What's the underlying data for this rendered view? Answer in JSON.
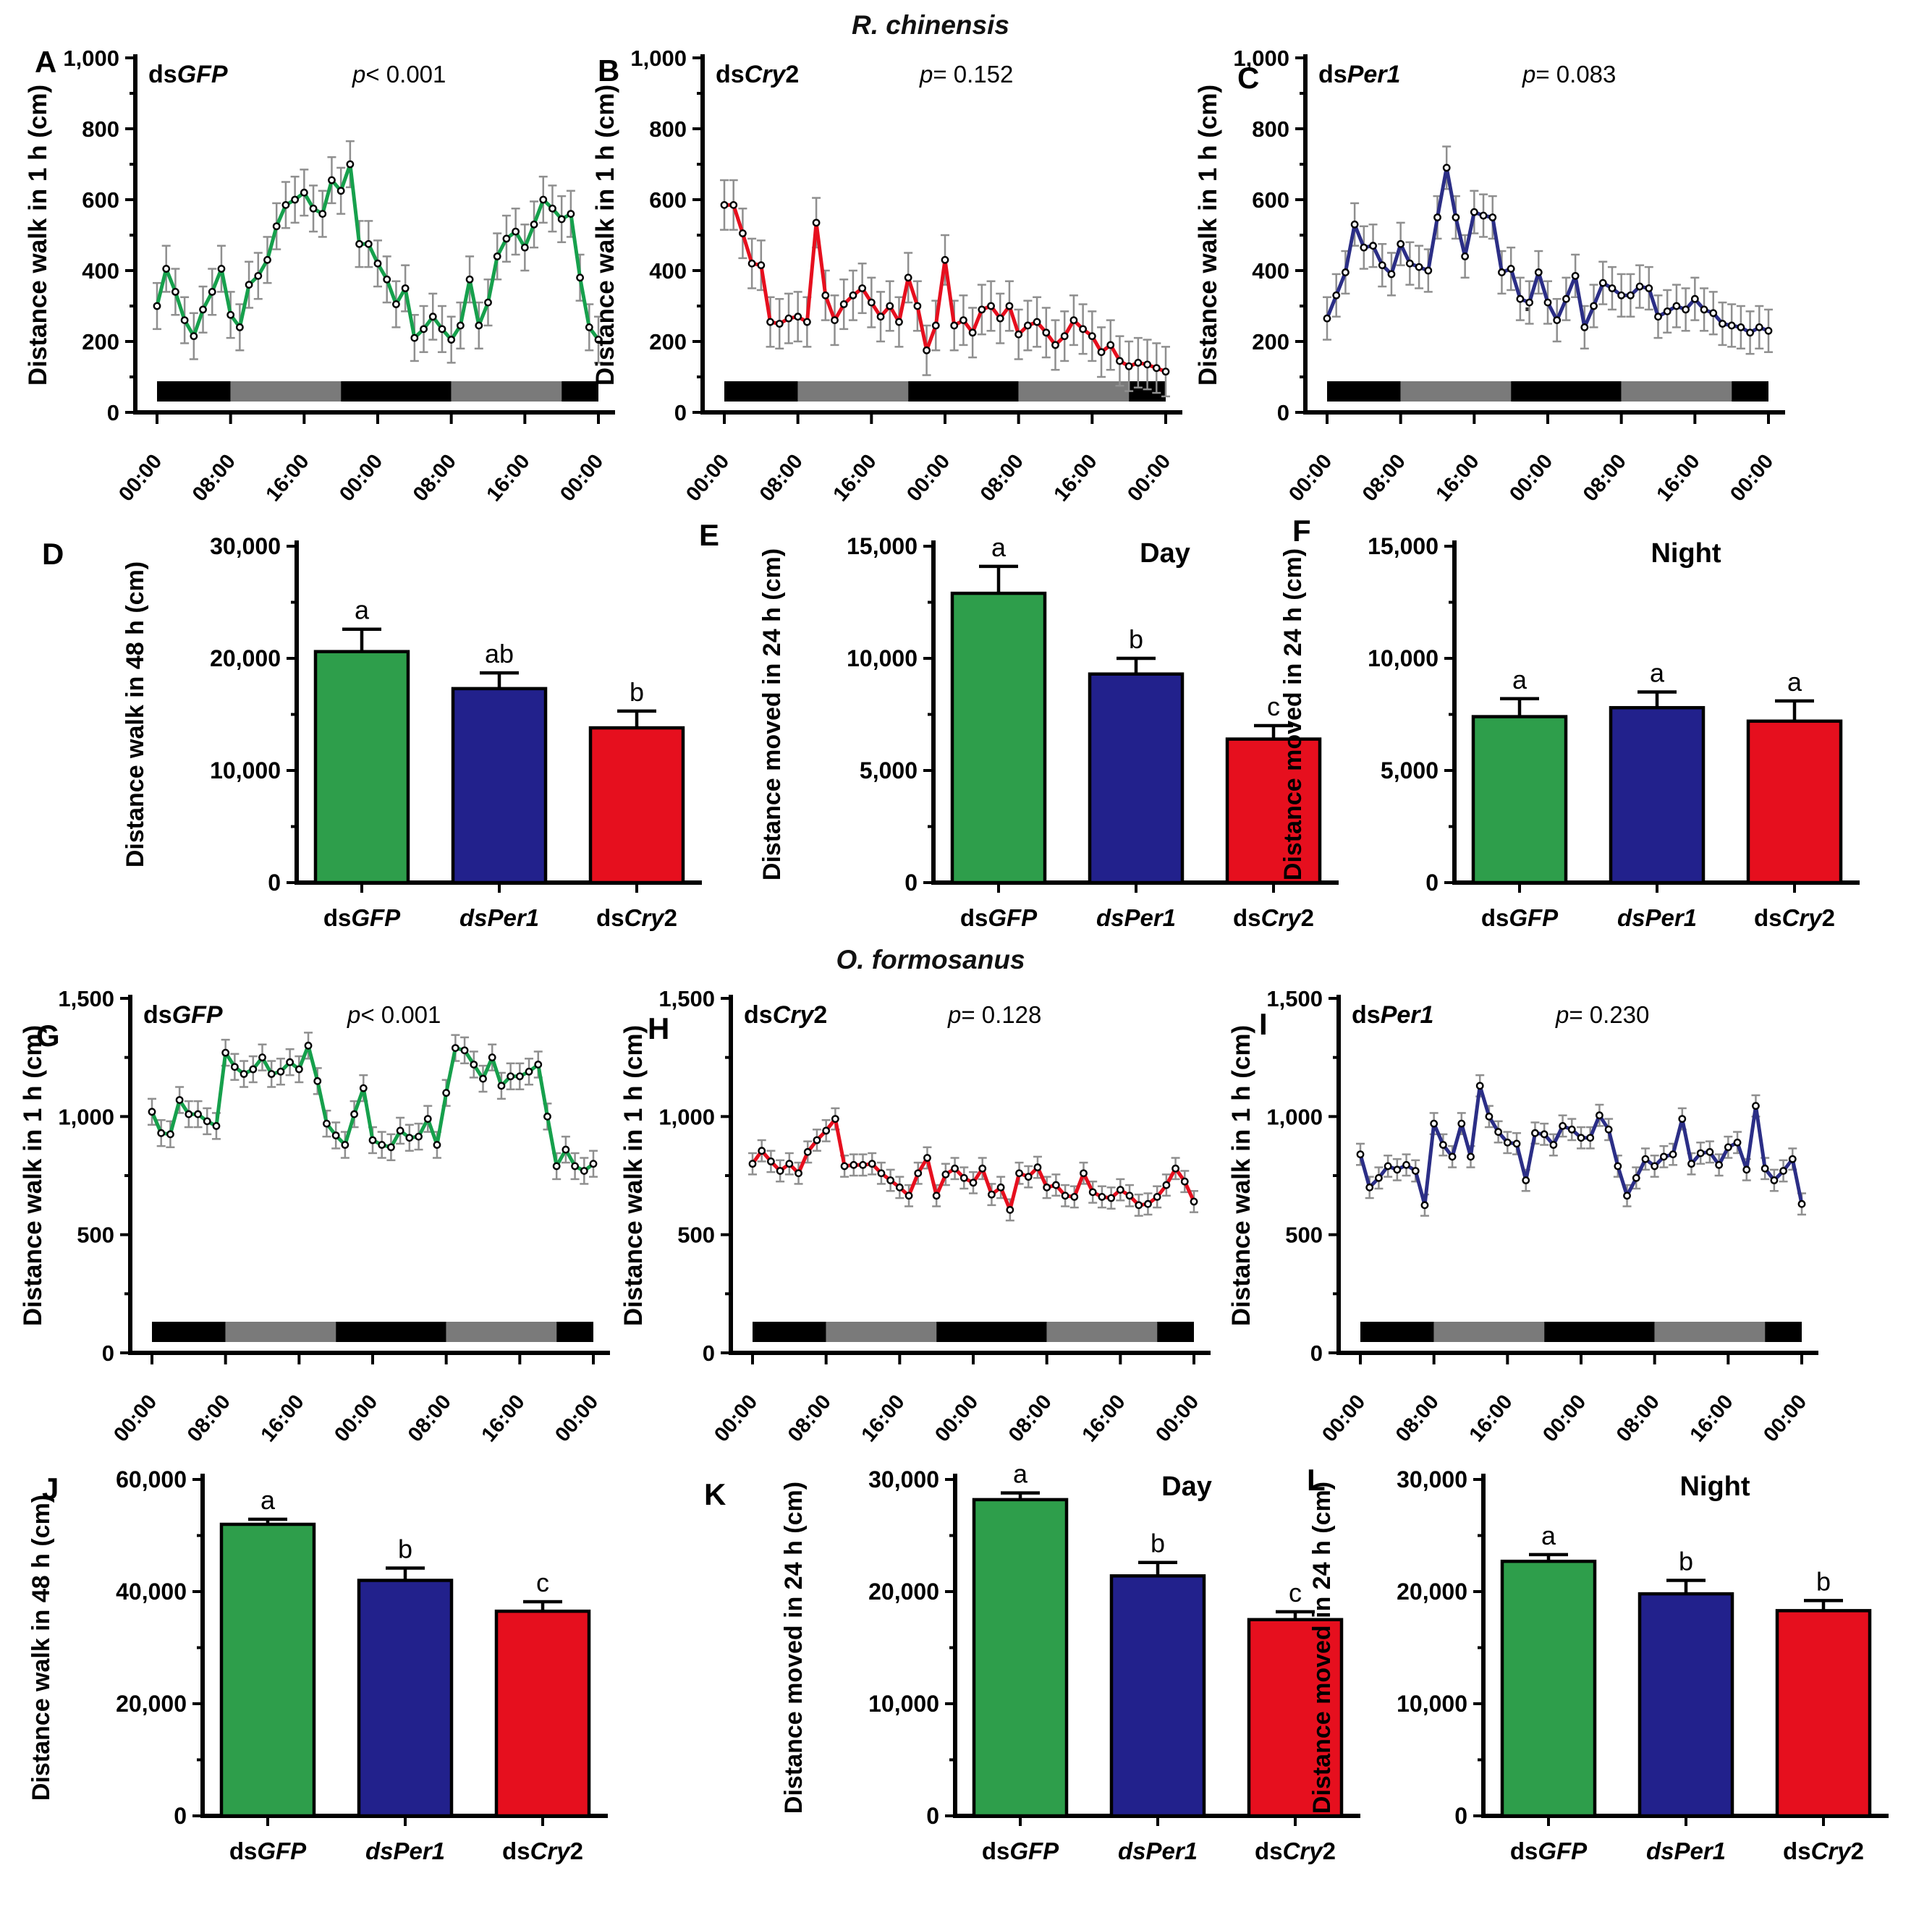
{
  "figure": {
    "species_titles": [
      "R. chinensis",
      "O. formosanus"
    ],
    "stray_dot": ".",
    "colors": {
      "green": "#2E9E4B",
      "blue": "#22218C",
      "red": "#E60F1E",
      "error_bar_gray": "#8f8f8f",
      "photoperiod_gray": "#7a7a7a",
      "photoperiod_black": "#000000"
    }
  },
  "chart_data": [
    {
      "id": "A",
      "type": "line",
      "species": "R. chinensis",
      "label": [
        {
          "t": "ds",
          "i": false
        },
        {
          "t": "GFP",
          "i": true
        }
      ],
      "p_label": [
        {
          "t": "p",
          "i": true
        },
        {
          "t": "< 0.001",
          "i": false
        }
      ],
      "color": "#16A04C",
      "ylabel": "Distance walk in 1 h (cm)",
      "ylim": [
        0,
        1000
      ],
      "ytick_step": 200,
      "xticklabels": [
        "00:00",
        "08:00",
        "16:00",
        "00:00",
        "08:00",
        "16:00",
        "00:00"
      ],
      "err": 65,
      "values": [
        300,
        405,
        340,
        260,
        215,
        290,
        340,
        405,
        275,
        240,
        360,
        385,
        430,
        525,
        585,
        600,
        620,
        575,
        560,
        655,
        625,
        700,
        475,
        475,
        420,
        375,
        305,
        350,
        210,
        235,
        270,
        235,
        205,
        245,
        375,
        245,
        310,
        440,
        490,
        510,
        465,
        530,
        600,
        575,
        545,
        560,
        380,
        240,
        205
      ],
      "photoperiod": [
        {
          "start": 0,
          "end": 8,
          "shade": "dark"
        },
        {
          "start": 8,
          "end": 20,
          "shade": "light"
        },
        {
          "start": 20,
          "end": 32,
          "shade": "dark"
        },
        {
          "start": 32,
          "end": 44,
          "shade": "light"
        },
        {
          "start": 44,
          "end": 48,
          "shade": "dark"
        }
      ]
    },
    {
      "id": "B",
      "type": "line",
      "species": "R. chinensis",
      "label": [
        {
          "t": "ds",
          "i": false
        },
        {
          "t": "Cry",
          "i": true
        },
        {
          "t": "2",
          "i": false
        }
      ],
      "p_label": [
        {
          "t": "p",
          "i": true
        },
        {
          "t": "= 0.152",
          "i": false
        }
      ],
      "color": "#E60F1E",
      "ylabel": "Distance walk in 1 h (cm)",
      "ylim": [
        0,
        1000
      ],
      "ytick_step": 200,
      "xticklabels": [
        "00:00",
        "08:00",
        "16:00",
        "00:00",
        "08:00",
        "16:00",
        "00:00"
      ],
      "err": 70,
      "values": [
        585,
        585,
        505,
        420,
        415,
        255,
        250,
        265,
        270,
        255,
        535,
        330,
        260,
        305,
        330,
        350,
        310,
        270,
        300,
        255,
        380,
        300,
        175,
        245,
        430,
        245,
        260,
        225,
        290,
        300,
        265,
        300,
        220,
        245,
        255,
        225,
        190,
        215,
        260,
        235,
        215,
        170,
        190,
        145,
        130,
        140,
        135,
        125,
        115
      ],
      "photoperiod": [
        {
          "start": 0,
          "end": 8,
          "shade": "dark"
        },
        {
          "start": 8,
          "end": 20,
          "shade": "light"
        },
        {
          "start": 20,
          "end": 32,
          "shade": "dark"
        },
        {
          "start": 32,
          "end": 44,
          "shade": "light"
        },
        {
          "start": 44,
          "end": 48,
          "shade": "dark"
        }
      ]
    },
    {
      "id": "C",
      "type": "line",
      "species": "R. chinensis",
      "label": [
        {
          "t": "ds",
          "i": false
        },
        {
          "t": "Per1",
          "i": true
        }
      ],
      "p_label": [
        {
          "t": "p",
          "i": true
        },
        {
          "t": "= 0.083",
          "i": false
        }
      ],
      "color": "#2B2E86",
      "ylabel": "Distance walk in 1 h (cm)",
      "ylim": [
        0,
        1000
      ],
      "ytick_step": 200,
      "xticklabels": [
        "00:00",
        "08:00",
        "16:00",
        "00:00",
        "08:00",
        "16:00",
        "00:00"
      ],
      "err": 60,
      "values": [
        265,
        330,
        395,
        530,
        465,
        470,
        415,
        390,
        475,
        420,
        410,
        400,
        550,
        690,
        550,
        440,
        565,
        555,
        550,
        395,
        405,
        320,
        310,
        395,
        310,
        260,
        320,
        385,
        240,
        300,
        365,
        350,
        330,
        330,
        355,
        350,
        270,
        285,
        300,
        290,
        320,
        290,
        280,
        250,
        245,
        240,
        225,
        240,
        230
      ],
      "photoperiod": [
        {
          "start": 0,
          "end": 8,
          "shade": "dark"
        },
        {
          "start": 8,
          "end": 20,
          "shade": "light"
        },
        {
          "start": 20,
          "end": 32,
          "shade": "dark"
        },
        {
          "start": 32,
          "end": 44,
          "shade": "light"
        },
        {
          "start": 44,
          "end": 48,
          "shade": "dark"
        }
      ]
    },
    {
      "id": "D",
      "type": "bar",
      "species": "R. chinensis",
      "title": "",
      "ylabel": "Distance walk in 48 h (cm)",
      "ylim": [
        0,
        30000
      ],
      "ytick_step": 10000,
      "categories": [
        [
          {
            "t": "ds",
            "i": false
          },
          {
            "t": "GFP",
            "i": true
          }
        ],
        [
          {
            "t": "dsPer1",
            "i": true
          }
        ],
        [
          {
            "t": "ds",
            "i": false
          },
          {
            "t": "Cry",
            "i": true
          },
          {
            "t": "2",
            "i": false
          }
        ]
      ],
      "values": [
        20600,
        17300,
        13800
      ],
      "errors": [
        2000,
        1400,
        1500
      ],
      "letters": [
        "a",
        "ab",
        "b"
      ],
      "bar_colors": [
        "#2E9E4B",
        "#22218C",
        "#E60F1E"
      ]
    },
    {
      "id": "E",
      "type": "bar",
      "species": "R. chinensis",
      "title": "Day",
      "ylabel": "Distance moved in 24 h (cm)",
      "ylim": [
        0,
        15000
      ],
      "ytick_step": 5000,
      "categories": [
        [
          {
            "t": "ds",
            "i": false
          },
          {
            "t": "GFP",
            "i": true
          }
        ],
        [
          {
            "t": "dsPer1",
            "i": true
          }
        ],
        [
          {
            "t": "ds",
            "i": false
          },
          {
            "t": "Cry",
            "i": true
          },
          {
            "t": "2",
            "i": false
          }
        ]
      ],
      "values": [
        12900,
        9300,
        6400
      ],
      "errors": [
        1200,
        700,
        600
      ],
      "letters": [
        "a",
        "b",
        "c"
      ],
      "bar_colors": [
        "#2E9E4B",
        "#22218C",
        "#E60F1E"
      ]
    },
    {
      "id": "F",
      "type": "bar",
      "species": "R. chinensis",
      "title": "Night",
      "ylabel": "Distance moved in 24 h (cm)",
      "ylim": [
        0,
        15000
      ],
      "ytick_step": 5000,
      "categories": [
        [
          {
            "t": "ds",
            "i": false
          },
          {
            "t": "GFP",
            "i": true
          }
        ],
        [
          {
            "t": "dsPer1",
            "i": true
          }
        ],
        [
          {
            "t": "ds",
            "i": false
          },
          {
            "t": "Cry",
            "i": true
          },
          {
            "t": "2",
            "i": false
          }
        ]
      ],
      "values": [
        7400,
        7800,
        7200
      ],
      "errors": [
        800,
        700,
        900
      ],
      "letters": [
        "a",
        "a",
        "a"
      ],
      "bar_colors": [
        "#2E9E4B",
        "#22218C",
        "#E60F1E"
      ]
    },
    {
      "id": "G",
      "type": "line",
      "species": "O. formosanus",
      "label": [
        {
          "t": "ds",
          "i": false
        },
        {
          "t": "GFP",
          "i": true
        }
      ],
      "p_label": [
        {
          "t": "p",
          "i": true
        },
        {
          "t": "< 0.001",
          "i": false
        }
      ],
      "color": "#16A04C",
      "ylabel": "Distance walk in 1 h (cm)",
      "ylim": [
        0,
        1500
      ],
      "ytick_step": 500,
      "xticklabels": [
        "00:00",
        "08:00",
        "16:00",
        "00:00",
        "08:00",
        "16:00",
        "00:00"
      ],
      "err": 55,
      "values": [
        1020,
        930,
        925,
        1070,
        1010,
        1010,
        980,
        960,
        1270,
        1210,
        1180,
        1200,
        1250,
        1180,
        1190,
        1230,
        1200,
        1300,
        1150,
        970,
        920,
        880,
        1010,
        1120,
        900,
        880,
        870,
        940,
        910,
        915,
        990,
        880,
        1100,
        1290,
        1280,
        1220,
        1160,
        1250,
        1130,
        1170,
        1170,
        1190,
        1220,
        1000,
        790,
        860,
        790,
        770,
        800
      ],
      "photoperiod": [
        {
          "start": 0,
          "end": 8,
          "shade": "dark"
        },
        {
          "start": 8,
          "end": 20,
          "shade": "light"
        },
        {
          "start": 20,
          "end": 32,
          "shade": "dark"
        },
        {
          "start": 32,
          "end": 44,
          "shade": "light"
        },
        {
          "start": 44,
          "end": 48,
          "shade": "dark"
        }
      ]
    },
    {
      "id": "H",
      "type": "line",
      "species": "O. formosanus",
      "label": [
        {
          "t": "ds",
          "i": false
        },
        {
          "t": "Cry",
          "i": true
        },
        {
          "t": "2",
          "i": false
        }
      ],
      "p_label": [
        {
          "t": "p",
          "i": true
        },
        {
          "t": "= 0.128",
          "i": false
        }
      ],
      "color": "#E60F1E",
      "ylabel": "Distance walk in 1 h (cm)",
      "ylim": [
        0,
        1500
      ],
      "ytick_step": 500,
      "xticklabels": [
        "00:00",
        "08:00",
        "16:00",
        "00:00",
        "08:00",
        "16:00",
        "00:00"
      ],
      "err": 45,
      "values": [
        800,
        855,
        810,
        770,
        800,
        760,
        850,
        900,
        940,
        990,
        790,
        795,
        795,
        800,
        760,
        730,
        700,
        665,
        760,
        825,
        665,
        755,
        780,
        740,
        720,
        780,
        670,
        700,
        605,
        760,
        745,
        785,
        700,
        710,
        665,
        660,
        760,
        680,
        660,
        655,
        690,
        665,
        625,
        630,
        660,
        710,
        780,
        725,
        640
      ],
      "photoperiod": [
        {
          "start": 0,
          "end": 8,
          "shade": "dark"
        },
        {
          "start": 8,
          "end": 20,
          "shade": "light"
        },
        {
          "start": 20,
          "end": 32,
          "shade": "dark"
        },
        {
          "start": 32,
          "end": 44,
          "shade": "light"
        },
        {
          "start": 44,
          "end": 48,
          "shade": "dark"
        }
      ]
    },
    {
      "id": "I",
      "type": "line",
      "species": "O. formosanus",
      "label": [
        {
          "t": "ds",
          "i": false
        },
        {
          "t": "Per1",
          "i": true
        }
      ],
      "p_label": [
        {
          "t": "p",
          "i": true
        },
        {
          "t": "= 0.230",
          "i": false
        }
      ],
      "color": "#2B2E86",
      "ylabel": "Distance walk in 1 h (cm)",
      "ylim": [
        0,
        1500
      ],
      "ytick_step": 500,
      "xticklabels": [
        "00:00",
        "08:00",
        "16:00",
        "00:00",
        "08:00",
        "16:00",
        "00:00"
      ],
      "err": 45,
      "values": [
        840,
        700,
        740,
        790,
        775,
        795,
        770,
        625,
        970,
        880,
        830,
        970,
        830,
        1130,
        1000,
        935,
        890,
        885,
        730,
        930,
        925,
        880,
        960,
        945,
        910,
        910,
        1005,
        945,
        790,
        665,
        740,
        820,
        790,
        830,
        840,
        990,
        800,
        845,
        850,
        795,
        870,
        890,
        775,
        1045,
        780,
        730,
        770,
        820,
        630
      ],
      "photoperiod": [
        {
          "start": 0,
          "end": 8,
          "shade": "dark"
        },
        {
          "start": 8,
          "end": 20,
          "shade": "light"
        },
        {
          "start": 20,
          "end": 32,
          "shade": "dark"
        },
        {
          "start": 32,
          "end": 44,
          "shade": "light"
        },
        {
          "start": 44,
          "end": 48,
          "shade": "dark"
        }
      ]
    },
    {
      "id": "J",
      "type": "bar",
      "species": "O. formosanus",
      "title": "",
      "ylabel": "Distance walk in 48 h (cm)",
      "ylim": [
        0,
        60000
      ],
      "ytick_step": 20000,
      "categories": [
        [
          {
            "t": "ds",
            "i": false
          },
          {
            "t": "GFP",
            "i": true
          }
        ],
        [
          {
            "t": "dsPer1",
            "i": true
          }
        ],
        [
          {
            "t": "ds",
            "i": false
          },
          {
            "t": "Cry",
            "i": true
          },
          {
            "t": "2",
            "i": false
          }
        ]
      ],
      "values": [
        52000,
        42000,
        36500
      ],
      "errors": [
        900,
        2200,
        1700
      ],
      "letters": [
        "a",
        "b",
        "c"
      ],
      "bar_colors": [
        "#2E9E4B",
        "#22218C",
        "#E60F1E"
      ]
    },
    {
      "id": "K",
      "type": "bar",
      "species": "O. formosanus",
      "title": "Day",
      "ylabel": "Distance moved in 24 h (cm)",
      "ylim": [
        0,
        30000
      ],
      "ytick_step": 10000,
      "categories": [
        [
          {
            "t": "ds",
            "i": false
          },
          {
            "t": "GFP",
            "i": true
          }
        ],
        [
          {
            "t": "dsPer1",
            "i": true
          }
        ],
        [
          {
            "t": "ds",
            "i": false
          },
          {
            "t": "Cry",
            "i": true
          },
          {
            "t": "2",
            "i": false
          }
        ]
      ],
      "values": [
        28200,
        21400,
        17500
      ],
      "errors": [
        600,
        1200,
        700
      ],
      "letters": [
        "a",
        "b",
        "c"
      ],
      "bar_colors": [
        "#2E9E4B",
        "#22218C",
        "#E60F1E"
      ]
    },
    {
      "id": "L",
      "type": "bar",
      "species": "O. formosanus",
      "title": "Night",
      "ylabel": "Distance moved in 24 h (cm)",
      "ylim": [
        0,
        30000
      ],
      "ytick_step": 10000,
      "categories": [
        [
          {
            "t": "ds",
            "i": false
          },
          {
            "t": "GFP",
            "i": true
          }
        ],
        [
          {
            "t": "dsPer1",
            "i": true
          }
        ],
        [
          {
            "t": "ds",
            "i": false
          },
          {
            "t": "Cry",
            "i": true
          },
          {
            "t": "2",
            "i": false
          }
        ]
      ],
      "values": [
        22700,
        19800,
        18300
      ],
      "errors": [
        600,
        1200,
        900
      ],
      "letters": [
        "a",
        "b",
        "b"
      ],
      "bar_colors": [
        "#2E9E4B",
        "#22218C",
        "#E60F1E"
      ]
    }
  ]
}
